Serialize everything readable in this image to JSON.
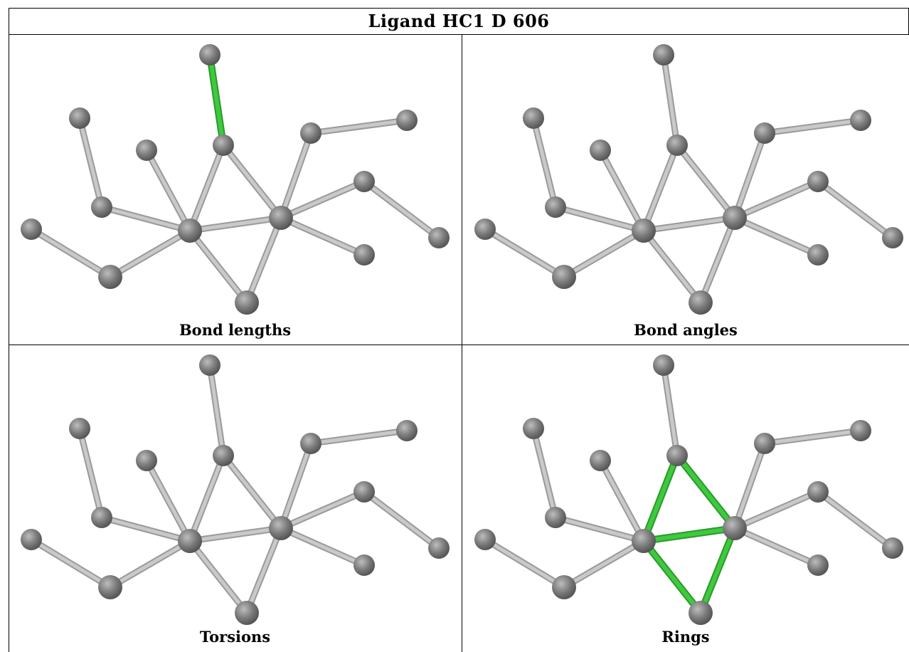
{
  "title": "Ligand HC1 D 606",
  "panels": [
    {
      "id": "bond-lengths",
      "caption": "Bond lengths",
      "highlight": "bond"
    },
    {
      "id": "bond-angles",
      "caption": "Bond angles",
      "highlight": "none"
    },
    {
      "id": "torsions",
      "caption": "Torsions",
      "highlight": "none"
    },
    {
      "id": "rings",
      "caption": "Rings",
      "highlight": "ring"
    }
  ],
  "colors": {
    "atom": "#7a7a7a",
    "bond": "#c9c9c9",
    "highlight": "#3ec93e",
    "border": "#000000"
  }
}
